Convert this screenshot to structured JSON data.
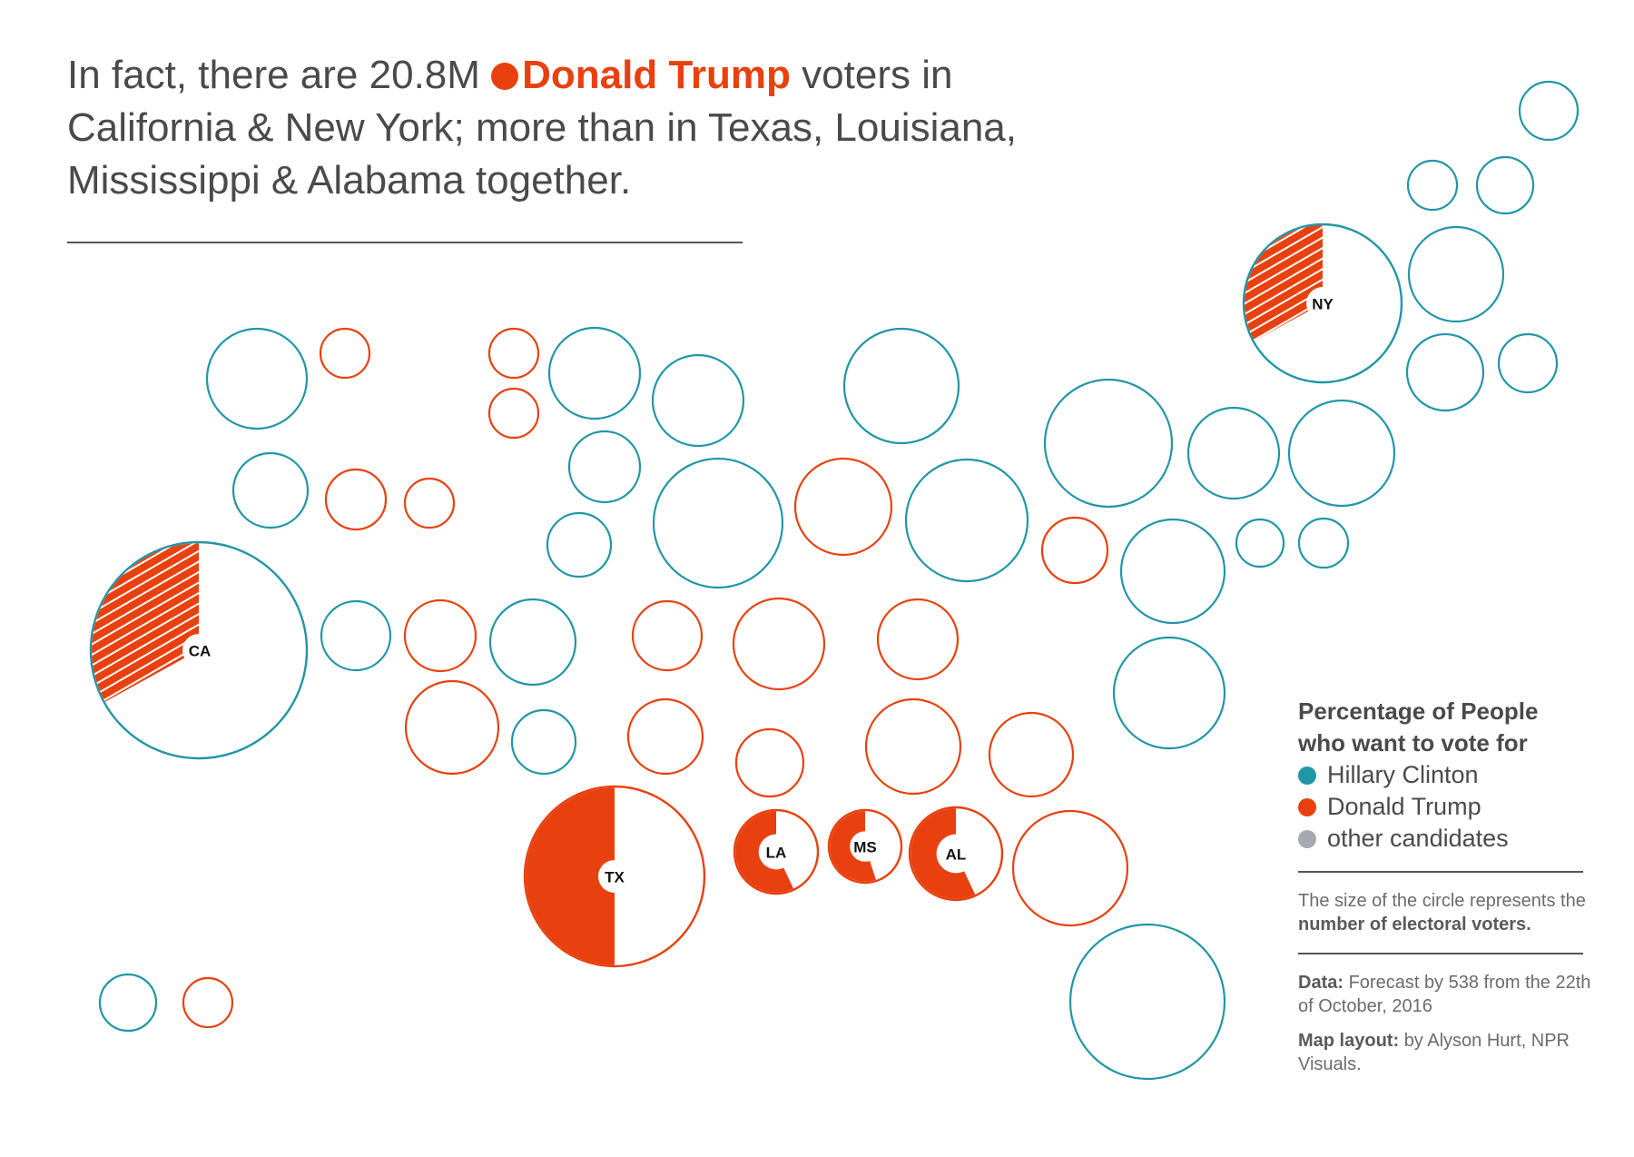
{
  "headline": {
    "before": "In fact, there are 20.8M",
    "highlight": "Donald Trump",
    "after": "voters in California & New York; more than in Texas, Louisiana, Mississippi & Alabama together."
  },
  "colors": {
    "clinton": "#2196a7",
    "trump": "#e8410f",
    "other": "#a8a8b0",
    "text": "#4a4a4a"
  },
  "legend": {
    "title": "Percentage of People who want to vote for",
    "items": [
      {
        "label": "Hillary Clinton",
        "color": "#2196a7"
      },
      {
        "label": "Donald Trump",
        "color": "#e8410f"
      },
      {
        "label": "other candidates",
        "color": "#a8a8b0"
      }
    ],
    "note_prefix": "The size of the circle represents the",
    "note_bold": "number of electoral voters."
  },
  "credits": {
    "data_label": "Data:",
    "data_text": "Forecast by 538 from the 22th of October, 2016",
    "layout_label": "Map layout:",
    "layout_text": "by Alyson Hurt, NPR Visuals."
  },
  "map_data": {
    "states": [
      {
        "label": "CA",
        "winner": "clinton",
        "electoral_votes": 55,
        "trump_share": 0.33
      },
      {
        "label": "NY",
        "winner": "clinton",
        "electoral_votes": 29,
        "trump_share": 0.33
      },
      {
        "label": "TX",
        "winner": "trump",
        "electoral_votes": 38,
        "trump_share": 0.5
      },
      {
        "label": "LA",
        "winner": "trump",
        "electoral_votes": 8,
        "trump_share": 0.57
      },
      {
        "label": "MS",
        "winner": "trump",
        "electoral_votes": 6,
        "trump_share": 0.55
      },
      {
        "label": "AL",
        "winner": "trump",
        "electoral_votes": 9,
        "trump_share": 0.57
      }
    ]
  }
}
